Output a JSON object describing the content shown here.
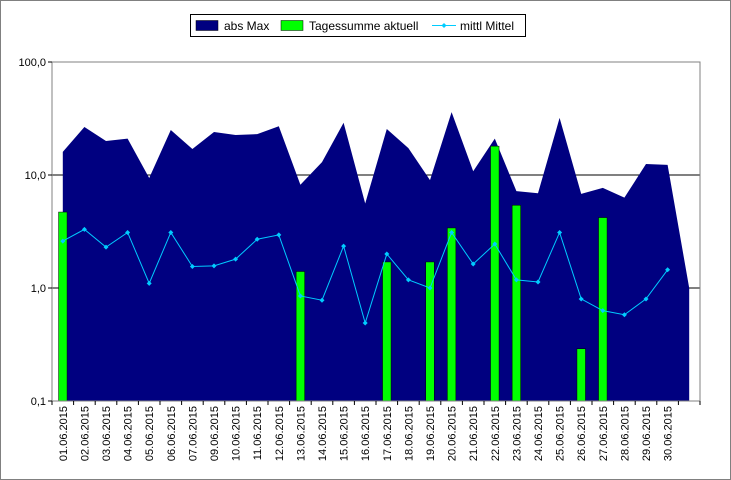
{
  "chart_data": {
    "type": "combo",
    "log_scale": true,
    "grid": true,
    "legend": "top",
    "categories": [
      "01.06.2015",
      "02.06.2015",
      "03.06.2015",
      "04.06.2015",
      "05.06.2015",
      "06.06.2015",
      "07.06.2015",
      "09.06.2015",
      "10.06.2015",
      "11.06.2015",
      "12.06.2015",
      "13.06.2015",
      "14.06.2015",
      "15.06.2015",
      "16.06.2015",
      "17.06.2015",
      "18.06.2015",
      "19.06.2015",
      "20.06.2015",
      "21.06.2015",
      "22.06.2015",
      "23.06.2015",
      "24.06.2015",
      "25.06.2015",
      "26.06.2015",
      "27.06.2015",
      "28.06.2015",
      "29.06.2015",
      "30.06.2015",
      null
    ],
    "series": [
      {
        "name": "abs Max",
        "type": "area",
        "color": "#000080",
        "values": [
          16,
          26.6,
          20,
          21,
          9.4,
          25,
          17,
          24,
          22.6,
          23,
          27,
          8.2,
          13,
          29,
          5.6,
          25.5,
          17.3,
          9,
          36,
          10.8,
          21,
          7.2,
          6.9,
          32,
          6.8,
          7.7,
          6.3,
          12.5,
          12.3,
          1.0
        ]
      },
      {
        "name": "Tagessumme aktuell",
        "type": "bar",
        "color": "#00ff00",
        "values": [
          4.7,
          null,
          null,
          null,
          null,
          null,
          null,
          null,
          null,
          null,
          null,
          1.4,
          null,
          null,
          null,
          1.7,
          null,
          1.7,
          3.4,
          null,
          18,
          5.4,
          null,
          null,
          0.29,
          4.2,
          null,
          null,
          null,
          null
        ]
      },
      {
        "name": "mittl Mittel",
        "type": "line",
        "color": "#00ccff",
        "values": [
          2.6,
          3.3,
          2.3,
          3.1,
          1.1,
          3.1,
          1.55,
          1.57,
          1.8,
          2.7,
          2.95,
          0.85,
          0.78,
          2.35,
          0.49,
          2.0,
          1.18,
          1.0,
          3.1,
          1.63,
          2.45,
          1.18,
          1.13,
          3.1,
          0.8,
          0.63,
          0.58,
          0.8,
          1.45,
          null
        ]
      }
    ],
    "ylim": [
      0.1,
      100
    ],
    "yticks": [
      {
        "value": 0.1,
        "label": "0,1"
      },
      {
        "value": 1,
        "label": "1,0"
      },
      {
        "value": 10,
        "label": "10,0"
      },
      {
        "value": 100,
        "label": "100,0"
      }
    ]
  }
}
